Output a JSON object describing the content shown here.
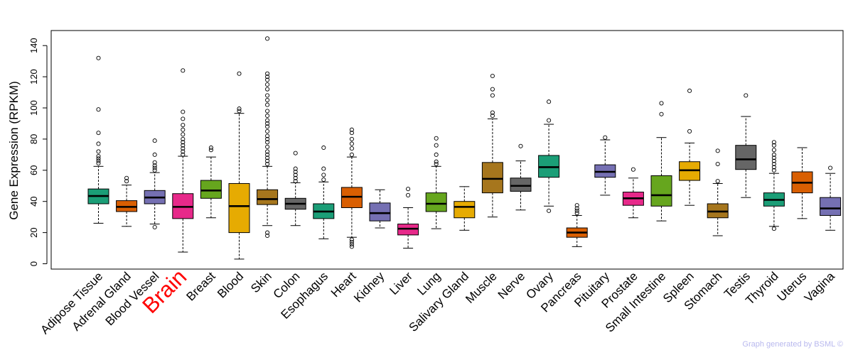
{
  "chart_data": {
    "type": "boxplot",
    "ylabel": "Gene Expression (RPKM)",
    "ylim": [
      0,
      145
    ],
    "yticks": [
      0,
      20,
      40,
      60,
      80,
      100,
      120,
      140
    ],
    "highlight": "Brain",
    "highlight_color": "#ff0000",
    "series": [
      {
        "name": "Adipose Tissue",
        "color": "#1b9e77",
        "min": 26,
        "q1": 38.5,
        "median": 43.5,
        "q3": 48,
        "max": 62.5,
        "outliers": [
          64.5,
          66,
          67.5,
          69,
          72,
          77,
          84,
          99,
          132
        ]
      },
      {
        "name": "Adrenal Gland",
        "color": "#d95f02",
        "min": 24,
        "q1": 33.5,
        "median": 36.5,
        "q3": 40.5,
        "max": 50.5,
        "outliers": [
          53,
          55
        ]
      },
      {
        "name": "Blood Vessel",
        "color": "#7570b3",
        "min": 25.5,
        "q1": 38.5,
        "median": 42.5,
        "q3": 47,
        "max": 58.5,
        "outliers": [
          23.5,
          60,
          61.5,
          63,
          65,
          70,
          79
        ]
      },
      {
        "name": "Brain",
        "color": "#e7298a",
        "min": 7.5,
        "q1": 29,
        "median": 36.5,
        "q3": 45,
        "max": 69,
        "outliers": [
          70,
          72,
          74,
          76,
          78,
          80,
          83,
          86,
          89,
          93,
          97.5,
          124
        ]
      },
      {
        "name": "Breast",
        "color": "#66a61e",
        "min": 29.5,
        "q1": 42,
        "median": 47,
        "q3": 53.5,
        "max": 68.5,
        "outliers": [
          73,
          74.5
        ]
      },
      {
        "name": "Blood",
        "color": "#e6ab02",
        "min": 3,
        "q1": 20,
        "median": 37,
        "q3": 51.5,
        "max": 96.5,
        "outliers": [
          98,
          99.5,
          122
        ]
      },
      {
        "name": "Skin",
        "color": "#a6761d",
        "min": 24.5,
        "q1": 38,
        "median": 41.5,
        "q3": 47.5,
        "max": 62.5,
        "outliers": [
          18,
          20,
          64,
          66,
          68,
          70,
          72,
          75,
          78,
          80,
          82,
          85,
          88,
          90,
          92,
          95,
          98,
          102,
          105,
          108,
          112,
          115,
          118,
          120,
          122,
          144.5
        ]
      },
      {
        "name": "Colon",
        "color": "#666666",
        "min": 24.5,
        "q1": 35,
        "median": 38.5,
        "q3": 42,
        "max": 52,
        "outliers": [
          53,
          55,
          57,
          59,
          61,
          71
        ]
      },
      {
        "name": "Esophagus",
        "color": "#1b9e77",
        "min": 16,
        "q1": 29,
        "median": 33.5,
        "q3": 38.5,
        "max": 52.5,
        "outliers": [
          54,
          57,
          61,
          74.5
        ]
      },
      {
        "name": "Heart",
        "color": "#d95f02",
        "min": 17,
        "q1": 36,
        "median": 43,
        "q3": 49,
        "max": 68.5,
        "outliers": [
          11,
          12.5,
          14,
          15.5,
          70,
          74,
          77,
          80,
          84,
          86
        ]
      },
      {
        "name": "Kidney",
        "color": "#7570b3",
        "min": 23,
        "q1": 27.5,
        "median": 32.5,
        "q3": 39,
        "max": 47.5,
        "outliers": []
      },
      {
        "name": "Liver",
        "color": "#e7298a",
        "min": 10,
        "q1": 18.5,
        "median": 22.5,
        "q3": 25.5,
        "max": 36,
        "outliers": [
          44,
          48
        ]
      },
      {
        "name": "Lung",
        "color": "#66a61e",
        "min": 22.5,
        "q1": 33.5,
        "median": 38.5,
        "q3": 45.5,
        "max": 62.5,
        "outliers": [
          64,
          65.5,
          70,
          76,
          80.5
        ]
      },
      {
        "name": "Salivary Gland",
        "color": "#e6ab02",
        "min": 21.5,
        "q1": 29.5,
        "median": 36.5,
        "q3": 40,
        "max": 49.5,
        "outliers": []
      },
      {
        "name": "Muscle",
        "color": "#a6761d",
        "min": 30,
        "q1": 45.5,
        "median": 54.5,
        "q3": 65,
        "max": 93,
        "outliers": [
          95,
          97,
          108,
          112,
          120.5
        ]
      },
      {
        "name": "Nerve",
        "color": "#666666",
        "min": 34.5,
        "q1": 46.5,
        "median": 50,
        "q3": 55,
        "max": 66,
        "outliers": [
          75.5
        ]
      },
      {
        "name": "Ovary",
        "color": "#1b9e77",
        "min": 37,
        "q1": 55.5,
        "median": 62,
        "q3": 69.5,
        "max": 89.5,
        "outliers": [
          34,
          92,
          104
        ]
      },
      {
        "name": "Pancreas",
        "color": "#d95f02",
        "min": 11,
        "q1": 17,
        "median": 20,
        "q3": 23,
        "max": 31,
        "outliers": [
          32.5,
          34,
          35.5,
          37.5
        ]
      },
      {
        "name": "Pituitary",
        "color": "#7570b3",
        "min": 44,
        "q1": 55.5,
        "median": 59,
        "q3": 63.5,
        "max": 79.5,
        "outliers": [
          81
        ]
      },
      {
        "name": "Prostate",
        "color": "#e7298a",
        "min": 29.5,
        "q1": 37.5,
        "median": 42,
        "q3": 46,
        "max": 55,
        "outliers": [
          60.5
        ]
      },
      {
        "name": "Small Intestine",
        "color": "#66a61e",
        "min": 27.5,
        "q1": 37,
        "median": 44,
        "q3": 56.5,
        "max": 81,
        "outliers": [
          96,
          103
        ]
      },
      {
        "name": "Spleen",
        "color": "#e6ab02",
        "min": 37.5,
        "q1": 53.5,
        "median": 60,
        "q3": 65.5,
        "max": 77.5,
        "outliers": [
          85,
          111
        ]
      },
      {
        "name": "Stomach",
        "color": "#a6761d",
        "min": 18,
        "q1": 29.5,
        "median": 33.5,
        "q3": 38.5,
        "max": 51.5,
        "outliers": [
          53,
          64,
          72.5
        ]
      },
      {
        "name": "Testis",
        "color": "#666666",
        "min": 42.5,
        "q1": 60.5,
        "median": 67,
        "q3": 76,
        "max": 94.5,
        "outliers": [
          108
        ]
      },
      {
        "name": "Thyroid",
        "color": "#1b9e77",
        "min": 24,
        "q1": 37,
        "median": 41,
        "q3": 45.5,
        "max": 58,
        "outliers": [
          22.5,
          60,
          62,
          64,
          66,
          68,
          70,
          73,
          76,
          78
        ]
      },
      {
        "name": "Uterus",
        "color": "#d95f02",
        "min": 29,
        "q1": 45.5,
        "median": 52,
        "q3": 59,
        "max": 74.5,
        "outliers": []
      },
      {
        "name": "Vagina",
        "color": "#7570b3",
        "min": 21.5,
        "q1": 31,
        "median": 35.5,
        "q3": 42.5,
        "max": 58,
        "outliers": [
          61.5
        ]
      }
    ]
  },
  "footer": {
    "watermark": "Graph generated by BSML ©"
  }
}
